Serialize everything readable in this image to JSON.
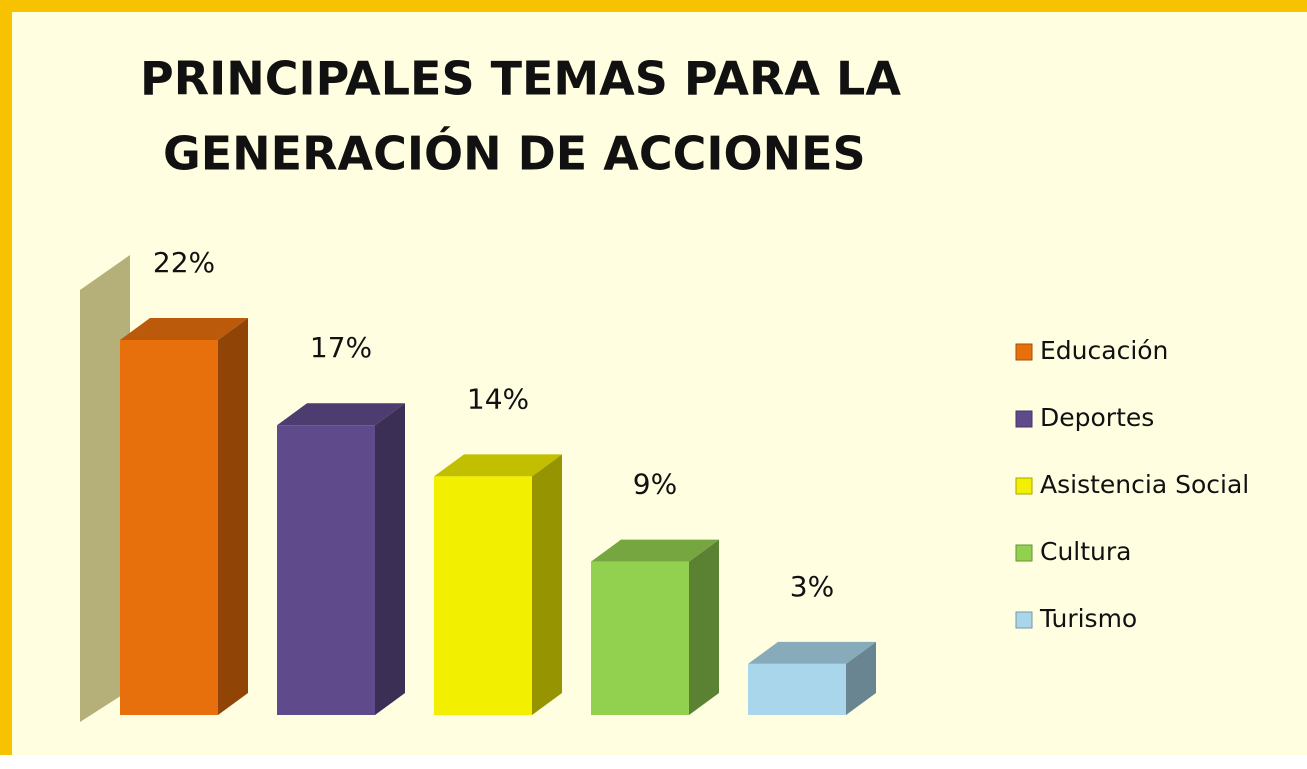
{
  "chart_data": {
    "type": "bar3d",
    "title": [
      "PRINCIPALES TEMAS PARA LA",
      "GENERACIÓN DE ACCIONES"
    ],
    "categories": [
      "Educación",
      "Deportes",
      "Asistencia Social",
      "Cultura",
      "Turismo"
    ],
    "values": [
      22,
      17,
      14,
      9,
      3
    ],
    "value_labels": [
      "22%",
      "17%",
      "14%",
      "9%",
      "3%"
    ],
    "colors": [
      "#e8700c",
      "#5f4b8b",
      "#f2ef00",
      "#92d050",
      "#a9d6ea"
    ],
    "legend": "right"
  }
}
